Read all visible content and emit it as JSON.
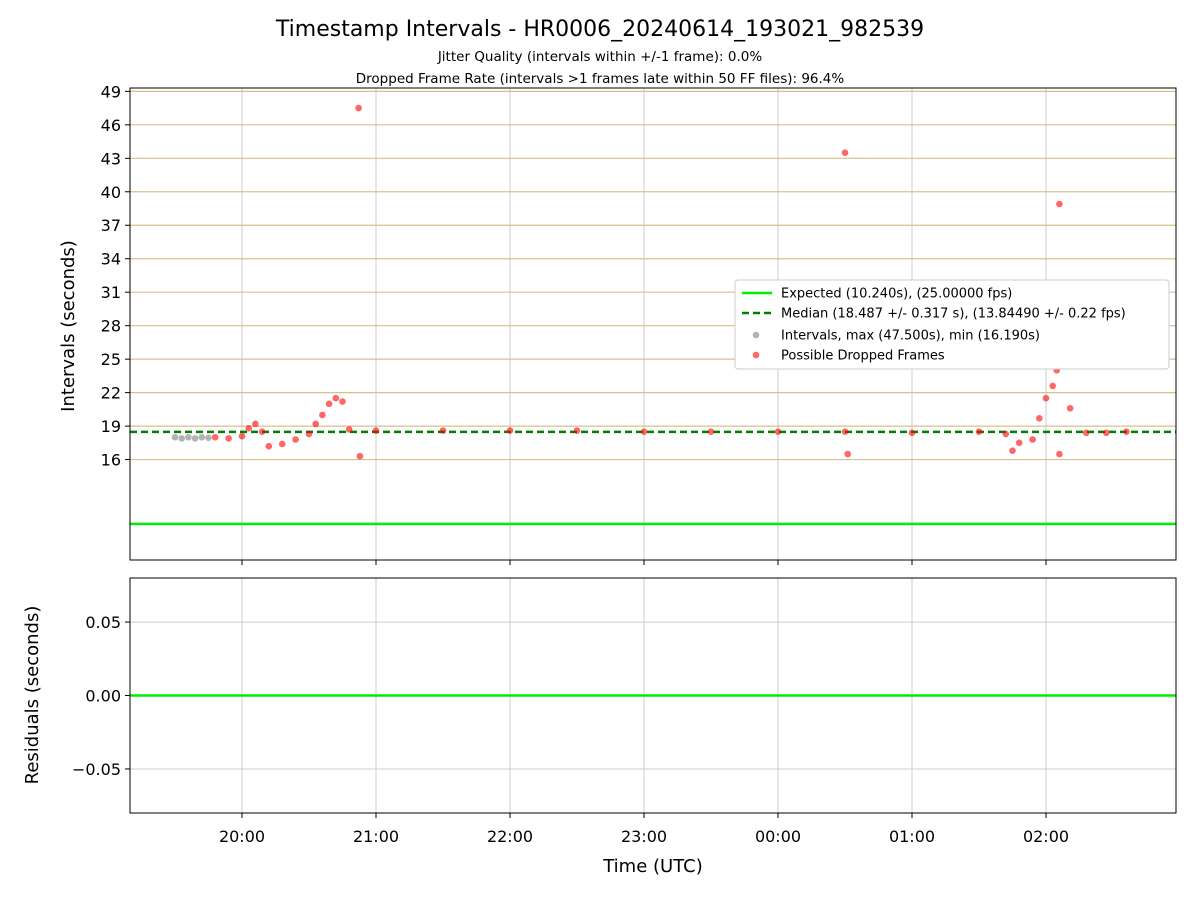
{
  "chart_data": [
    {
      "type": "scatter",
      "title": "Timestamp Intervals - HR0006_20240614_193021_982539",
      "subtitle_lines": [
        "Jitter Quality (intervals within +/-1 frame): 0.0%",
        "Dropped Frame Rate (intervals >1 frames late within 50 FF files): 96.4%"
      ],
      "ylabel": "Intervals (seconds)",
      "ylim": [
        7,
        49.3
      ],
      "y_ticks": [
        "16",
        "19",
        "22",
        "25",
        "28",
        "31",
        "34",
        "37",
        "40",
        "43",
        "46",
        "49"
      ],
      "x_domain_hours": [
        19.17,
        27.0
      ],
      "legend_position": "center-right",
      "legend": [
        "Expected (10.240s), (25.00000 fps)",
        "Median (18.487 +/- 0.317 s), (13.84490 +/- 0.22 fps)",
        "Intervals, max (47.500s), min (16.190s)",
        "Possible Dropped Frames"
      ],
      "expected_interval": 10.24,
      "median_interval": 18.487,
      "series": [
        {
          "name": "Intervals, max (47.500s), min (16.190s)",
          "points": [
            [
              19.5,
              18.0
            ],
            [
              19.55,
              17.9
            ],
            [
              19.6,
              18.0
            ],
            [
              19.65,
              17.9
            ],
            [
              19.7,
              18.0
            ],
            [
              19.75,
              17.95
            ]
          ]
        },
        {
          "name": "Possible Dropped Frames",
          "points": [
            [
              19.8,
              18.0
            ],
            [
              19.9,
              17.9
            ],
            [
              20.0,
              18.1
            ],
            [
              20.05,
              18.8
            ],
            [
              20.1,
              19.2
            ],
            [
              20.15,
              18.5
            ],
            [
              20.2,
              17.2
            ],
            [
              20.3,
              17.4
            ],
            [
              20.4,
              17.8
            ],
            [
              20.5,
              18.3
            ],
            [
              20.55,
              19.2
            ],
            [
              20.6,
              20.0
            ],
            [
              20.65,
              21.0
            ],
            [
              20.7,
              21.5
            ],
            [
              20.75,
              21.2
            ],
            [
              20.8,
              18.7
            ],
            [
              20.87,
              47.5
            ],
            [
              20.88,
              16.3
            ],
            [
              21.0,
              18.6
            ],
            [
              21.5,
              18.6
            ],
            [
              22.0,
              18.6
            ],
            [
              22.5,
              18.6
            ],
            [
              23.0,
              18.5
            ],
            [
              23.5,
              18.5
            ],
            [
              24.0,
              18.5
            ],
            [
              24.5,
              18.5
            ],
            [
              24.5,
              43.5
            ],
            [
              24.52,
              16.5
            ],
            [
              25.0,
              18.4
            ],
            [
              25.5,
              18.5
            ],
            [
              25.7,
              18.3
            ],
            [
              25.75,
              16.8
            ],
            [
              25.8,
              17.5
            ],
            [
              25.9,
              17.8
            ],
            [
              25.95,
              19.7
            ],
            [
              26.0,
              21.5
            ],
            [
              26.05,
              22.6
            ],
            [
              26.08,
              24.0
            ],
            [
              26.1,
              38.9
            ],
            [
              26.1,
              16.5
            ],
            [
              26.18,
              20.6
            ],
            [
              26.3,
              18.4
            ],
            [
              26.45,
              18.4
            ],
            [
              26.6,
              18.5
            ]
          ]
        }
      ]
    },
    {
      "type": "line",
      "xlabel": "Time (UTC)",
      "ylabel": "Residuals (seconds)",
      "ylim": [
        -0.08,
        0.08
      ],
      "y_ticks": [
        "0.05",
        "0.00",
        "−0.05"
      ],
      "x_tick_labels": [
        "20:00",
        "21:00",
        "22:00",
        "23:00",
        "00:00",
        "01:00",
        "02:00"
      ],
      "residual_value": 0.0
    }
  ]
}
